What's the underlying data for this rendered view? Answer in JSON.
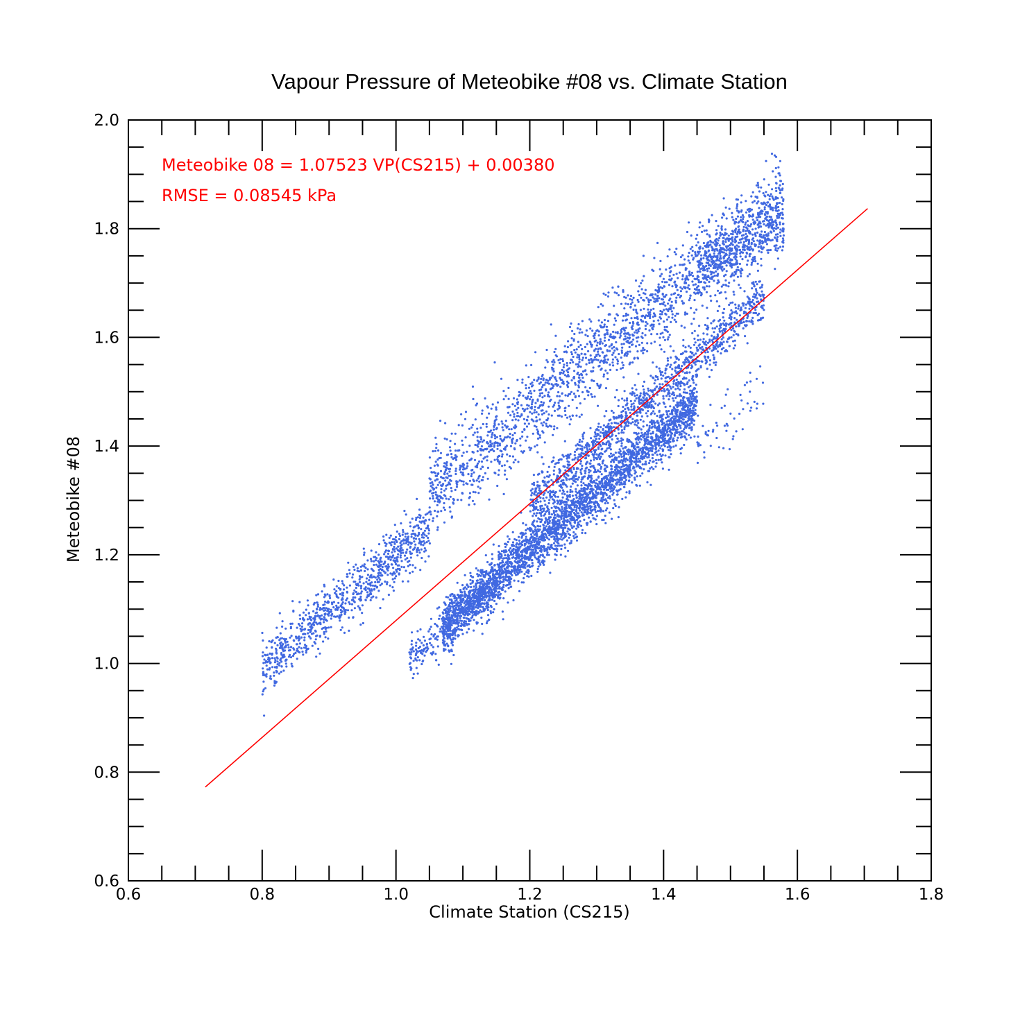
{
  "chart_data": {
    "type": "scatter",
    "title": "Vapour Pressure of Meteobike #08 vs. Climate Station",
    "xlabel": "Climate Station (CS215)",
    "ylabel": "Meteobike #08",
    "xlim": [
      0.6,
      1.8
    ],
    "ylim": [
      0.6,
      2.0
    ],
    "x_ticks": [
      "0.6",
      "0.8",
      "1.0",
      "1.2",
      "1.4",
      "1.6",
      "1.8"
    ],
    "y_ticks": [
      "0.6",
      "0.8",
      "1.0",
      "1.2",
      "1.4",
      "1.6",
      "1.8",
      "2.0"
    ],
    "point_color": "#4169e1",
    "fit_line_color": "#ff0000",
    "annotations": [
      "Meteobike 08 = 1.07523 VP(CS215) + 0.00380",
      "RMSE = 0.08545 kPa"
    ],
    "fit_line": {
      "slope": 1.07523,
      "intercept": 0.0038,
      "x_range": [
        0.715,
        1.705
      ]
    },
    "series": [
      {
        "clusters": [
          {
            "x_range": [
              0.8,
              1.05
            ],
            "slope": 1.05,
            "intercept": 0.148,
            "spread": 0.025,
            "count": 900
          },
          {
            "x_range": [
              1.07,
              1.45
            ],
            "slope": 1.08,
            "intercept": -0.087,
            "spread": 0.025,
            "count": 3200
          },
          {
            "x_range": [
              1.02,
              1.15
            ],
            "slope": 1.05,
            "intercept": -0.065,
            "spread": 0.02,
            "count": 300
          },
          {
            "x_range": [
              1.2,
              1.55
            ],
            "slope": 1.08,
            "intercept": 0.0,
            "spread": 0.02,
            "count": 1200
          },
          {
            "x_range": [
              1.05,
              1.58
            ],
            "slope": 1.02,
            "intercept": 0.24,
            "spread": 0.04,
            "count": 2000
          },
          {
            "x_range": [
              1.45,
              1.58
            ],
            "slope": 0.7,
            "intercept": 0.71,
            "spread": 0.03,
            "count": 400
          },
          {
            "x_range": [
              1.45,
              1.55
            ],
            "slope": 0.9,
            "intercept": 0.1,
            "spread": 0.03,
            "count": 60
          }
        ]
      }
    ]
  }
}
